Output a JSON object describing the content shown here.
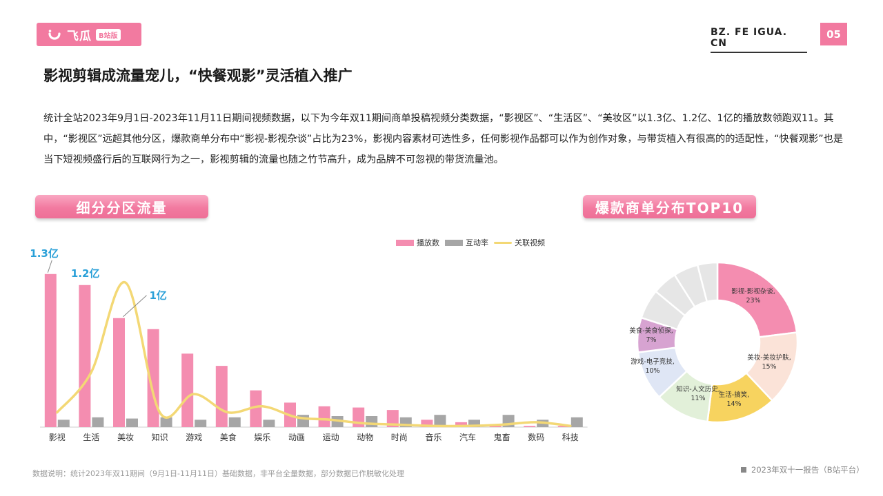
{
  "header": {
    "logo_text": "飞瓜",
    "logo_badge": "B站版",
    "site": "BZ. FE IGUA. CN",
    "page_number": "05"
  },
  "title": "影视剪辑成流量宠儿，“快餐观影”灵活植入推广",
  "body": "统计全站2023年9月1日-2023年11月11日期间视频数据，以下为今年双11期间商单投稿视频分类数据，“影视区”、“生活区”、“美妆区”以1.3亿、1.2亿、1亿的播放数领跑双11。其中，“影视区”远超其他分区，爆款商单分布中“影视-影视杂谈”占比为23%，影视内容素材可选性多，任何影视作品都可以作为创作对象，与带货植入有很高的的适配性，“快餐观影”也是当下短视频盛行后的互联网行为之一，影视剪辑的流量也随之竹节高升，成为品牌不可忽视的带货流量池。",
  "left_section_title": "细分分区流量",
  "right_section_title": "爆款商单分布TOP10",
  "legend": {
    "bar_play": "播放数",
    "bar_interact": "互动率",
    "line_related": "关联视频"
  },
  "colors": {
    "accent": "#f27aa0",
    "bar_play": "#f48db0",
    "bar_interact": "#a6a6a6",
    "line_related": "#f3d875",
    "callout": "#2aa0d8"
  },
  "chart_data": [
    {
      "type": "bar",
      "categories": [
        "影视",
        "生活",
        "美妆",
        "知识",
        "游戏",
        "美食",
        "娱乐",
        "动画",
        "运动",
        "动物",
        "时尚",
        "音乐",
        "汽车",
        "鬼畜",
        "数码",
        "科技"
      ],
      "series": [
        {
          "name": "播放数",
          "values": [
            125,
            116,
            89,
            80,
            60,
            50,
            30,
            20,
            17,
            16,
            14,
            6,
            4,
            2,
            1,
            1
          ]
        },
        {
          "name": "互动率",
          "values": [
            6,
            8,
            7,
            8,
            6,
            8,
            6,
            10,
            9,
            9,
            8,
            10,
            6,
            10,
            6,
            8
          ]
        },
        {
          "name": "关联视频",
          "values": [
            12,
            45,
            118,
            12,
            27,
            12,
            17,
            8,
            6,
            3,
            2,
            1,
            1,
            2,
            4,
            1
          ]
        }
      ],
      "annotations": [
        {
          "category": "影视",
          "text": "1.3亿"
        },
        {
          "category": "生活",
          "text": "1.2亿"
        },
        {
          "category": "美妆",
          "text": "1亿"
        }
      ],
      "ylim": [
        0,
        135
      ],
      "legend": "top-right"
    },
    {
      "type": "pie",
      "labels": [
        "影视-影视杂谈,",
        "美妆-美妆护肤,",
        "生活-搞笑,",
        "知识-人文历史,",
        "游戏-电子竞技,",
        "美食-美食侦探,",
        "",
        "",
        "",
        ""
      ],
      "values": [
        23,
        15,
        14,
        11,
        10,
        7,
        6,
        5,
        5,
        4
      ],
      "percent_labels": [
        "23%",
        "15%",
        "14%",
        "11%",
        "10%",
        "7%",
        "",
        "",
        "",
        ""
      ],
      "colors": [
        "#f48db0",
        "#fbe3d8",
        "#f7d35f",
        "#e2f0d9",
        "#dfe6f5",
        "#d7a3d1",
        "#e6e6e6",
        "#e6e6e6",
        "#e6e6e6",
        "#e6e6e6"
      ]
    }
  ],
  "footnote": "数据说明：统计2023年双11期间（9月1日-11月11日）基础数据，非平台全量数据，部分数据已作脱敏化处理",
  "report_label": "2023年双十一报告（B站平台）"
}
